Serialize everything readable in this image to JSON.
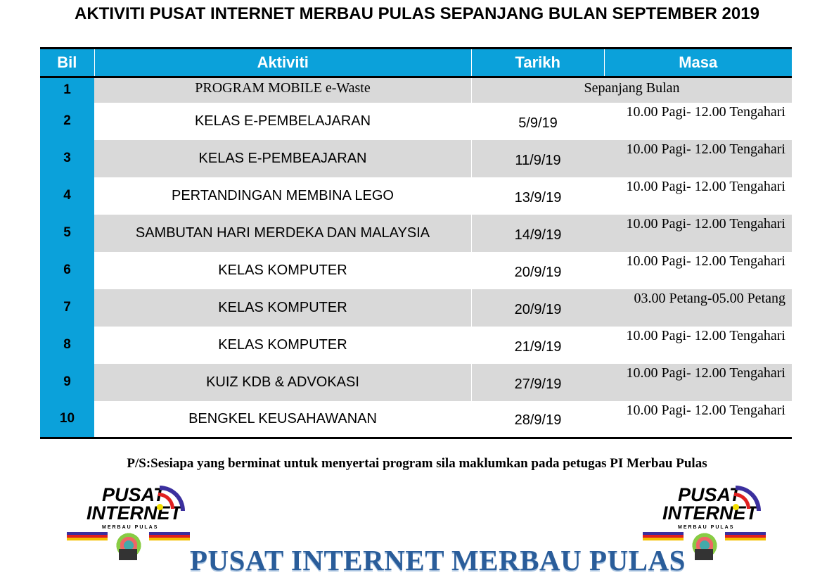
{
  "title": "AKTIVITI PUSAT INTERNET MERBAU PULAS SEPANJANG BULAN SEPTEMBER 2019",
  "table": {
    "headers": [
      "Bil",
      "Aktiviti",
      "Tarikh",
      "Masa"
    ],
    "first_row": {
      "bil": "1",
      "aktiviti": "PROGRAM MOBILE e-Waste",
      "merged": "Sepanjang Bulan"
    },
    "rows": [
      {
        "bil": "2",
        "aktiviti": "KELAS E-PEMBELAJARAN",
        "tarikh": "5/9/19",
        "masa": "10.00 Pagi- 12.00 Tengahari"
      },
      {
        "bil": "3",
        "aktiviti": "KELAS E-PEMBEAJARAN",
        "tarikh": "11/9/19",
        "masa": "10.00 Pagi- 12.00 Tengahari"
      },
      {
        "bil": "4",
        "aktiviti": "PERTANDINGAN MEMBINA LEGO",
        "tarikh": "13/9/19",
        "masa": "10.00 Pagi- 12.00 Tengahari"
      },
      {
        "bil": "5",
        "aktiviti": "SAMBUTAN HARI MERDEKA DAN MALAYSIA",
        "tarikh": "14/9/19",
        "masa": "10.00 Pagi- 12.00 Tengahari"
      },
      {
        "bil": "6",
        "aktiviti": "KELAS KOMPUTER",
        "tarikh": "20/9/19",
        "masa": "10.00 Pagi- 12.00 Tengahari"
      },
      {
        "bil": "7",
        "aktiviti": "KELAS KOMPUTER",
        "tarikh": "20/9/19",
        "masa": "03.00 Petang-05.00 Petang"
      },
      {
        "bil": "8",
        "aktiviti": "KELAS KOMPUTER",
        "tarikh": "21/9/19",
        "masa": "10.00 Pagi- 12.00 Tengahari"
      },
      {
        "bil": "9",
        "aktiviti": "KUIZ KDB & ADVOKASI",
        "tarikh": "27/9/19",
        "masa": "10.00 Pagi- 12.00 Tengahari"
      },
      {
        "bil": "10",
        "aktiviti": "BENGKEL KEUSAHAWANAN",
        "tarikh": "28/9/19",
        "masa": "10.00 Pagi- 12.00 Tengahari"
      }
    ]
  },
  "note": "P/S:Sesiapa yang berminat untuk menyertai program sila maklumkan pada petugas PI Merbau Pulas",
  "logo": {
    "line1": "PUSAT",
    "line2": "INTERNET",
    "line3": "MERBAU PULAS"
  },
  "brand_text": "PUSAT INTERNET MERBAU PULAS",
  "colors": {
    "header_blue": "#0ba1da",
    "row_gray": "#d9d9d9",
    "brand_blue": "#2a5d9a"
  }
}
